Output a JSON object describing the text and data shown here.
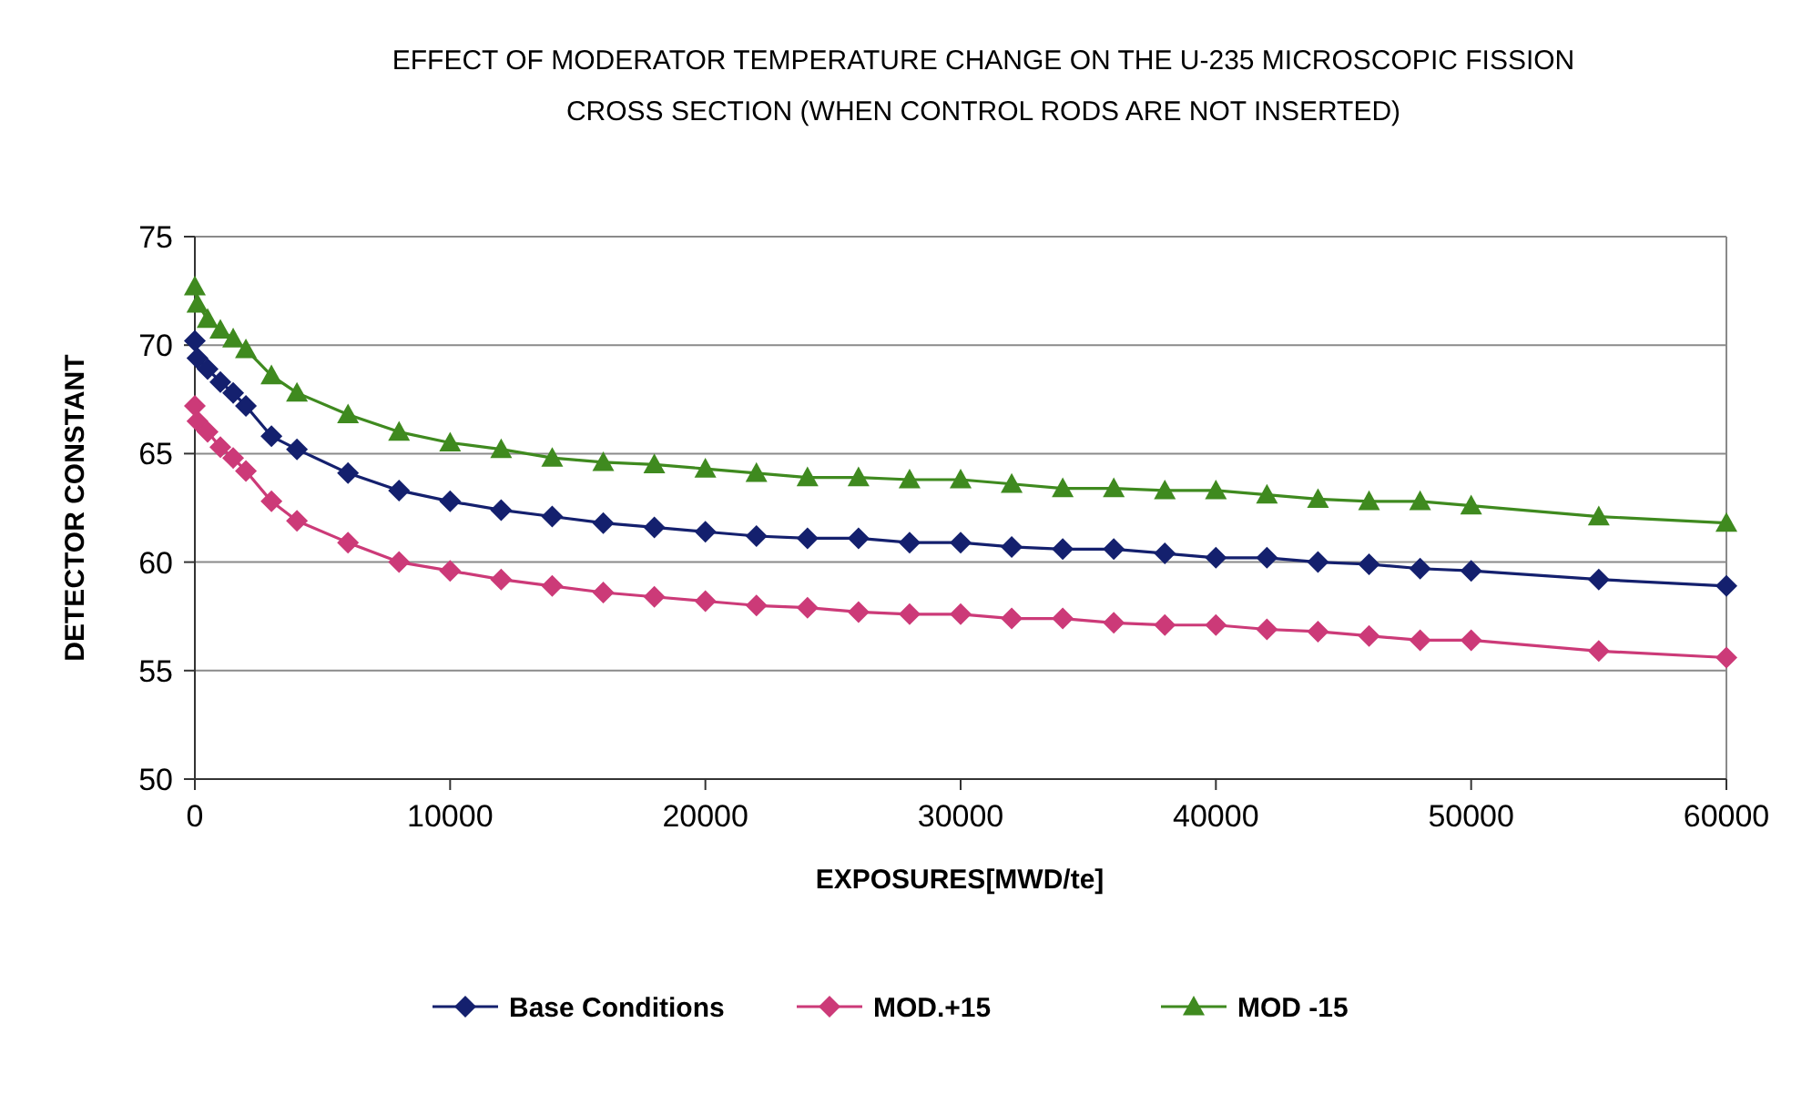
{
  "chart_data": {
    "type": "line",
    "title": "EFFECT OF MODERATOR TEMPERATURE CHANGE ON THE U-235 MICROSCOPIC FISSION CROSS SECTION (WHEN  CONTROL RODS ARE NOT INSERTED)",
    "xlabel": "EXPOSURES[MWD/te]",
    "ylabel": "DETECTOR CONSTANT",
    "xlim": [
      0,
      60000
    ],
    "xticks": [
      0,
      10000,
      20000,
      30000,
      40000,
      50000,
      60000
    ],
    "ylim": [
      50,
      75
    ],
    "yticks": [
      50,
      55,
      60,
      65,
      70,
      75
    ],
    "grid": "y",
    "legend": "bottom",
    "line_style": "solid",
    "x": [
      0,
      100,
      500,
      1000,
      1500,
      2000,
      3000,
      4000,
      6000,
      8000,
      10000,
      12000,
      14000,
      16000,
      18000,
      20000,
      22000,
      24000,
      26000,
      28000,
      30000,
      32000,
      34000,
      36000,
      38000,
      40000,
      42000,
      44000,
      46000,
      48000,
      50000,
      55000,
      60000
    ],
    "series": [
      {
        "name": "Base Conditions",
        "color": "#14206e",
        "marker": "diamond",
        "values": [
          70.2,
          69.4,
          68.9,
          68.3,
          67.8,
          67.2,
          65.8,
          65.2,
          64.1,
          63.3,
          62.8,
          62.4,
          62.1,
          61.8,
          61.6,
          61.4,
          61.2,
          61.1,
          61.1,
          60.9,
          60.9,
          60.7,
          60.6,
          60.6,
          60.4,
          60.2,
          60.2,
          60.0,
          59.9,
          59.7,
          59.6,
          59.2,
          58.9
        ]
      },
      {
        "name": "MOD.+15",
        "color": "#cc3a78",
        "marker": "diamond",
        "values": [
          67.2,
          66.5,
          66.0,
          65.3,
          64.8,
          64.2,
          62.8,
          61.9,
          60.9,
          60.0,
          59.6,
          59.2,
          58.9,
          58.6,
          58.4,
          58.2,
          58.0,
          57.9,
          57.7,
          57.6,
          57.6,
          57.4,
          57.4,
          57.2,
          57.1,
          57.1,
          56.9,
          56.8,
          56.6,
          56.4,
          56.4,
          55.9,
          55.6
        ]
      },
      {
        "name": "MOD -15",
        "color": "#3f8a1f",
        "marker": "triangle",
        "values": [
          72.7,
          71.9,
          71.2,
          70.7,
          70.3,
          69.8,
          68.6,
          67.8,
          66.8,
          66.0,
          65.5,
          65.2,
          64.8,
          64.6,
          64.5,
          64.3,
          64.1,
          63.9,
          63.9,
          63.8,
          63.8,
          63.6,
          63.4,
          63.4,
          63.3,
          63.3,
          63.1,
          62.9,
          62.8,
          62.8,
          62.6,
          62.1,
          61.8
        ]
      }
    ]
  }
}
